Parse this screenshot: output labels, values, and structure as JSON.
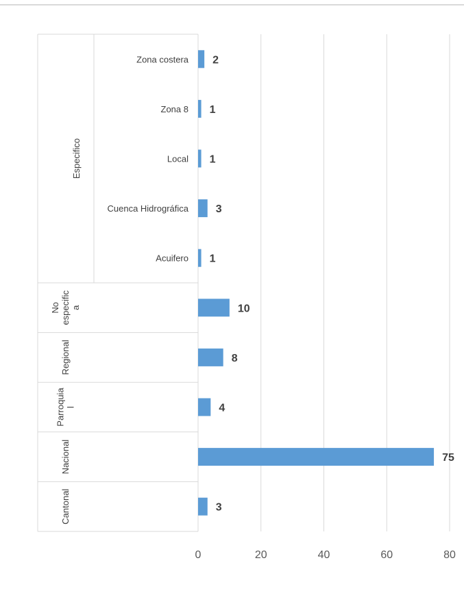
{
  "colors": {
    "bar": "#5b9bd5",
    "grid": "#d9d9d9",
    "text": "#404040",
    "axis_text": "#595959"
  },
  "chart_data": {
    "type": "bar",
    "orientation": "horizontal",
    "title": "",
    "xlabel": "",
    "ylabel": "",
    "xlim": [
      0,
      80
    ],
    "x_ticks": [
      0,
      20,
      40,
      60,
      80
    ],
    "grid": true,
    "legend": "none",
    "rows": [
      {
        "group": "Especifico",
        "category": "Zona costera",
        "value": 2
      },
      {
        "group": "Especifico",
        "category": "Zona 8",
        "value": 1
      },
      {
        "group": "Especifico",
        "category": "Local",
        "value": 1
      },
      {
        "group": "Especifico",
        "category": "Cuenca Hidrográfica",
        "value": 3
      },
      {
        "group": "Especifico",
        "category": "Acuifero",
        "value": 1
      },
      {
        "group": "No especifica",
        "category": "",
        "value": 10
      },
      {
        "group": "Regional",
        "category": "",
        "value": 8
      },
      {
        "group": "Parroquial",
        "category": "",
        "value": 4
      },
      {
        "group": "Nacional",
        "category": "",
        "value": 75
      },
      {
        "group": "Cantonal",
        "category": "",
        "value": 3
      }
    ],
    "groups": [
      {
        "name": "Especifico",
        "label_lines": [
          "Especifico"
        ]
      },
      {
        "name": "No especifica",
        "label_lines": [
          "No",
          "especific",
          "a"
        ]
      },
      {
        "name": "Regional",
        "label_lines": [
          "Regional"
        ]
      },
      {
        "name": "Parroquial",
        "label_lines": [
          "Parroquia",
          "l"
        ]
      },
      {
        "name": "Nacional",
        "label_lines": [
          "Nacional"
        ]
      },
      {
        "name": "Cantonal",
        "label_lines": [
          "Cantonal"
        ]
      }
    ]
  }
}
